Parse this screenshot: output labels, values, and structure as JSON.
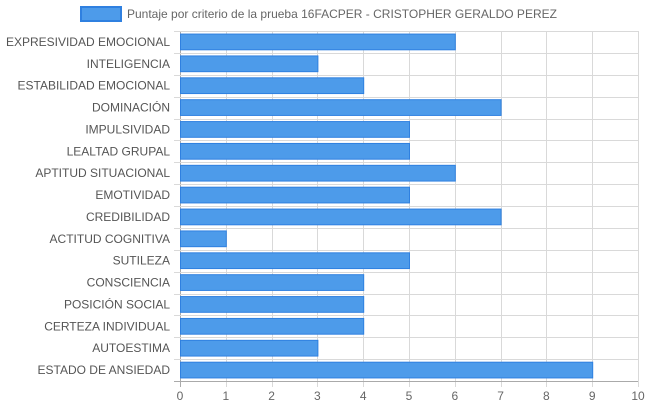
{
  "chart_data": {
    "type": "bar",
    "orientation": "horizontal",
    "legend": {
      "label": "Puntaje por criterio de la prueba 16FACPER - CRISTOPHER GERALDO PEREZ",
      "placement": "top-center"
    },
    "categories": [
      "EXPRESIVIDAD EMOCIONAL",
      "INTELIGENCIA",
      "ESTABILIDAD EMOCIONAL",
      "DOMINACIÓN",
      "IMPULSIVIDAD",
      "LEALTAD GRUPAL",
      "APTITUD SITUACIONAL",
      "EMOTIVIDAD",
      "CREDIBILIDAD",
      "ACTITUD COGNITIVA",
      "SUTILEZA",
      "CONSCIENCIA",
      "POSICIÓN SOCIAL",
      "CERTEZA INDIVIDUAL",
      "AUTOESTIMA",
      "ESTADO DE ANSIEDAD"
    ],
    "series": [
      {
        "name": "Puntaje por criterio de la prueba 16FACPER - CRISTOPHER GERALDO PEREZ",
        "values": [
          6,
          3,
          4,
          7,
          5,
          5,
          6,
          5,
          7,
          1,
          5,
          4,
          4,
          4,
          3,
          9
        ]
      }
    ],
    "xlim": [
      0,
      10
    ],
    "x_ticks": [
      "0",
      "1",
      "2",
      "3",
      "4",
      "5",
      "6",
      "7",
      "8",
      "9",
      "10"
    ],
    "grid": true,
    "colors": {
      "bar_fill": "#4d9bea",
      "bar_stroke": "#2f80e0",
      "grid": "#d9d9d9",
      "grid_zero": "#aaaaaa"
    }
  }
}
